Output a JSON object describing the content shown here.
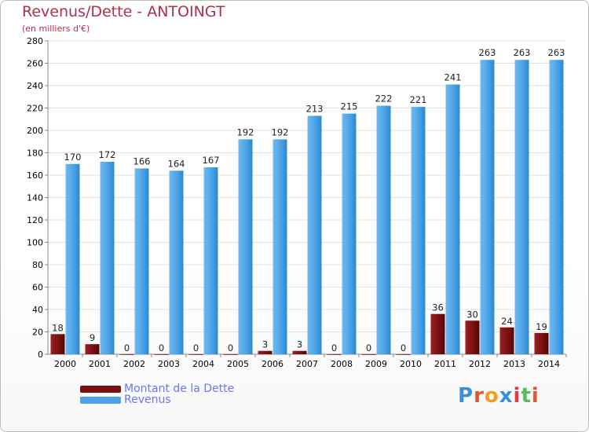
{
  "chart_data": {
    "type": "bar",
    "title": "Revenus/Dette - ANTOINGT",
    "subtitle": "(en milliers d'€)",
    "categories": [
      "2000",
      "2001",
      "2002",
      "2003",
      "2004",
      "2005",
      "2006",
      "2007",
      "2008",
      "2009",
      "2010",
      "2011",
      "2012",
      "2013",
      "2014"
    ],
    "series": [
      {
        "name": "Montant de la Dette",
        "values": [
          18,
          9,
          0,
          0,
          0,
          0,
          3,
          3,
          0,
          0,
          0,
          36,
          30,
          24,
          19
        ],
        "color": "#7a1010"
      },
      {
        "name": "Revenus",
        "values": [
          170,
          172,
          166,
          164,
          167,
          192,
          192,
          213,
          215,
          222,
          221,
          241,
          263,
          263,
          263
        ],
        "color": "#4aa3e8"
      }
    ],
    "yticks": [
      0,
      20,
      40,
      60,
      80,
      100,
      120,
      140,
      160,
      180,
      200,
      220,
      240,
      260,
      280
    ],
    "ylim": [
      0,
      280
    ],
    "grid": true,
    "legend_position": "bottom-left"
  },
  "logo": {
    "text": "Proxiti",
    "colors": [
      "#3a8fd8",
      "#e0562e",
      "#f0a020",
      "#3a8fd8",
      "#e23b3b",
      "#5cb85c",
      "#e0562e"
    ]
  }
}
